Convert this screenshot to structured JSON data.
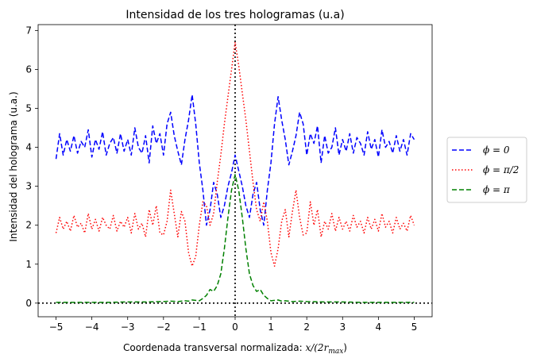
{
  "chart_data": {
    "type": "line",
    "title": "Intensidad de los tres hologramas (u.a)",
    "xlabel": "Coordenada transversal normalizada: x/(2r_max)",
    "xlabel_text": "Coordenada transversal normalizada: ",
    "xlabel_math": "x/(2r",
    "xlabel_sub": "max",
    "xlabel_close": ")",
    "ylabel": "Intensidad del holograma (u.a.)",
    "xlim": [
      -5.5,
      5.5
    ],
    "ylim": [
      -0.35,
      7.15
    ],
    "xticks": [
      -5,
      -4,
      -3,
      -2,
      -1,
      0,
      1,
      2,
      3,
      4,
      5
    ],
    "xtick_labels": [
      "−5",
      "−4",
      "−3",
      "−2",
      "−1",
      "0",
      "1",
      "2",
      "3",
      "4",
      "5"
    ],
    "yticks": [
      0,
      1,
      2,
      3,
      4,
      5,
      6,
      7
    ],
    "ytick_labels": [
      "0",
      "1",
      "2",
      "3",
      "4",
      "5",
      "6",
      "7"
    ],
    "grid": false,
    "legend_position": "outside-right",
    "reference_lines": [
      {
        "axis": "x",
        "value": 0,
        "style": "dotted",
        "color": "#000000"
      },
      {
        "axis": "y",
        "value": 0,
        "style": "dotted",
        "color": "#000000"
      }
    ],
    "series": [
      {
        "name": "ϕ = 0",
        "color": "#0000ff",
        "linestyle": "dashed",
        "x": [
          -5.0,
          -4.9,
          -4.8,
          -4.7,
          -4.6,
          -4.5,
          -4.4,
          -4.3,
          -4.2,
          -4.1,
          -4.0,
          -3.9,
          -3.8,
          -3.7,
          -3.6,
          -3.5,
          -3.4,
          -3.3,
          -3.2,
          -3.1,
          -3.0,
          -2.9,
          -2.8,
          -2.7,
          -2.6,
          -2.5,
          -2.4,
          -2.3,
          -2.2,
          -2.1,
          -2.0,
          -1.9,
          -1.8,
          -1.7,
          -1.6,
          -1.5,
          -1.4,
          -1.3,
          -1.2,
          -1.1,
          -1.0,
          -0.9,
          -0.8,
          -0.7,
          -0.6,
          -0.5,
          -0.4,
          -0.3,
          -0.2,
          -0.1,
          0.0,
          0.1,
          0.2,
          0.3,
          0.4,
          0.5,
          0.6,
          0.7,
          0.8,
          0.9,
          1.0,
          1.1,
          1.2,
          1.3,
          1.4,
          1.5,
          1.6,
          1.7,
          1.8,
          1.9,
          2.0,
          2.1,
          2.2,
          2.3,
          2.4,
          2.5,
          2.6,
          2.7,
          2.8,
          2.9,
          3.0,
          3.1,
          3.2,
          3.3,
          3.4,
          3.5,
          3.6,
          3.7,
          3.8,
          3.9,
          4.0,
          4.1,
          4.2,
          4.3,
          4.4,
          4.5,
          4.6,
          4.7,
          4.8,
          4.9,
          5.0
        ],
        "y": [
          3.7,
          4.35,
          3.8,
          4.2,
          3.9,
          4.3,
          3.85,
          4.15,
          4.0,
          4.45,
          3.75,
          4.2,
          3.95,
          4.4,
          3.8,
          4.1,
          4.25,
          3.85,
          4.35,
          3.9,
          4.2,
          3.8,
          4.5,
          4.0,
          3.85,
          4.3,
          3.6,
          4.55,
          4.1,
          4.35,
          3.8,
          4.6,
          4.9,
          4.3,
          3.9,
          3.55,
          4.2,
          4.7,
          5.35,
          4.6,
          3.6,
          2.9,
          2.0,
          2.4,
          3.1,
          2.8,
          2.2,
          2.5,
          3.0,
          3.35,
          3.8,
          3.4,
          3.0,
          2.5,
          2.2,
          2.8,
          3.1,
          2.4,
          2.0,
          2.9,
          3.6,
          4.6,
          5.3,
          4.7,
          4.2,
          3.55,
          3.9,
          4.3,
          4.9,
          4.6,
          3.8,
          4.35,
          4.1,
          4.55,
          3.6,
          4.3,
          3.85,
          4.0,
          4.5,
          3.8,
          4.2,
          3.9,
          4.35,
          3.85,
          4.25,
          4.1,
          3.8,
          4.4,
          3.95,
          4.2,
          3.75,
          4.45,
          4.0,
          4.15,
          3.85,
          4.3,
          3.9,
          4.2,
          3.8,
          4.35,
          4.2
        ]
      },
      {
        "name": "ϕ = π/2",
        "color": "#ff0000",
        "linestyle": "dotted",
        "x": [
          -5.0,
          -4.9,
          -4.8,
          -4.7,
          -4.6,
          -4.5,
          -4.4,
          -4.3,
          -4.2,
          -4.1,
          -4.0,
          -3.9,
          -3.8,
          -3.7,
          -3.6,
          -3.5,
          -3.4,
          -3.3,
          -3.2,
          -3.1,
          -3.0,
          -2.9,
          -2.8,
          -2.7,
          -2.6,
          -2.5,
          -2.4,
          -2.3,
          -2.2,
          -2.1,
          -2.0,
          -1.9,
          -1.8,
          -1.7,
          -1.6,
          -1.5,
          -1.4,
          -1.3,
          -1.2,
          -1.1,
          -1.0,
          -0.9,
          -0.8,
          -0.7,
          -0.6,
          -0.5,
          -0.4,
          -0.3,
          -0.2,
          -0.1,
          0.0,
          0.1,
          0.2,
          0.3,
          0.4,
          0.5,
          0.6,
          0.7,
          0.8,
          0.9,
          1.0,
          1.1,
          1.2,
          1.3,
          1.4,
          1.5,
          1.6,
          1.7,
          1.8,
          1.9,
          2.0,
          2.1,
          2.2,
          2.3,
          2.4,
          2.5,
          2.6,
          2.7,
          2.8,
          2.9,
          3.0,
          3.1,
          3.2,
          3.3,
          3.4,
          3.5,
          3.6,
          3.7,
          3.8,
          3.9,
          4.0,
          4.1,
          4.2,
          4.3,
          4.4,
          4.5,
          4.6,
          4.7,
          4.8,
          4.9,
          5.0
        ],
        "y": [
          1.8,
          2.2,
          1.9,
          2.1,
          1.85,
          2.25,
          1.95,
          2.05,
          1.8,
          2.3,
          1.9,
          2.15,
          1.85,
          2.2,
          2.0,
          1.9,
          2.25,
          1.85,
          2.1,
          1.95,
          2.2,
          1.8,
          2.3,
          1.9,
          2.05,
          1.7,
          2.4,
          2.0,
          2.5,
          1.8,
          1.75,
          2.1,
          2.9,
          2.3,
          1.7,
          2.35,
          2.1,
          1.3,
          0.95,
          1.2,
          2.0,
          2.6,
          2.5,
          2.0,
          2.3,
          3.1,
          3.8,
          4.6,
          5.3,
          6.0,
          6.7,
          6.1,
          5.4,
          4.7,
          3.9,
          3.1,
          2.4,
          2.1,
          2.6,
          2.1,
          1.3,
          0.95,
          1.4,
          2.1,
          2.4,
          1.7,
          2.35,
          2.9,
          2.2,
          1.75,
          1.8,
          2.6,
          2.0,
          2.4,
          1.7,
          2.1,
          1.9,
          2.3,
          1.85,
          2.2,
          1.9,
          2.1,
          1.85,
          2.25,
          1.95,
          2.1,
          1.8,
          2.2,
          1.9,
          2.15,
          1.85,
          2.3,
          1.95,
          2.1,
          1.8,
          2.2,
          1.9,
          2.05,
          1.85,
          2.25,
          2.0
        ]
      },
      {
        "name": "ϕ = π",
        "color": "#008000",
        "linestyle": "dashed",
        "x": [
          -5.0,
          -4.5,
          -4.0,
          -3.5,
          -3.0,
          -2.5,
          -2.0,
          -1.8,
          -1.6,
          -1.4,
          -1.3,
          -1.2,
          -1.1,
          -1.0,
          -0.9,
          -0.8,
          -0.7,
          -0.6,
          -0.5,
          -0.4,
          -0.3,
          -0.2,
          -0.1,
          0.0,
          0.1,
          0.2,
          0.3,
          0.4,
          0.5,
          0.6,
          0.7,
          0.8,
          0.9,
          1.0,
          1.1,
          1.2,
          1.3,
          1.4,
          1.6,
          1.8,
          2.0,
          2.5,
          3.0,
          3.5,
          4.0,
          4.5,
          5.0
        ],
        "y": [
          0.02,
          0.02,
          0.02,
          0.02,
          0.03,
          0.03,
          0.04,
          0.05,
          0.04,
          0.06,
          0.05,
          0.08,
          0.07,
          0.06,
          0.12,
          0.2,
          0.35,
          0.3,
          0.45,
          0.75,
          1.4,
          2.2,
          2.9,
          3.3,
          2.9,
          2.2,
          1.4,
          0.75,
          0.45,
          0.3,
          0.35,
          0.2,
          0.12,
          0.06,
          0.07,
          0.08,
          0.05,
          0.06,
          0.04,
          0.05,
          0.04,
          0.03,
          0.03,
          0.02,
          0.02,
          0.02,
          0.02
        ]
      }
    ]
  }
}
